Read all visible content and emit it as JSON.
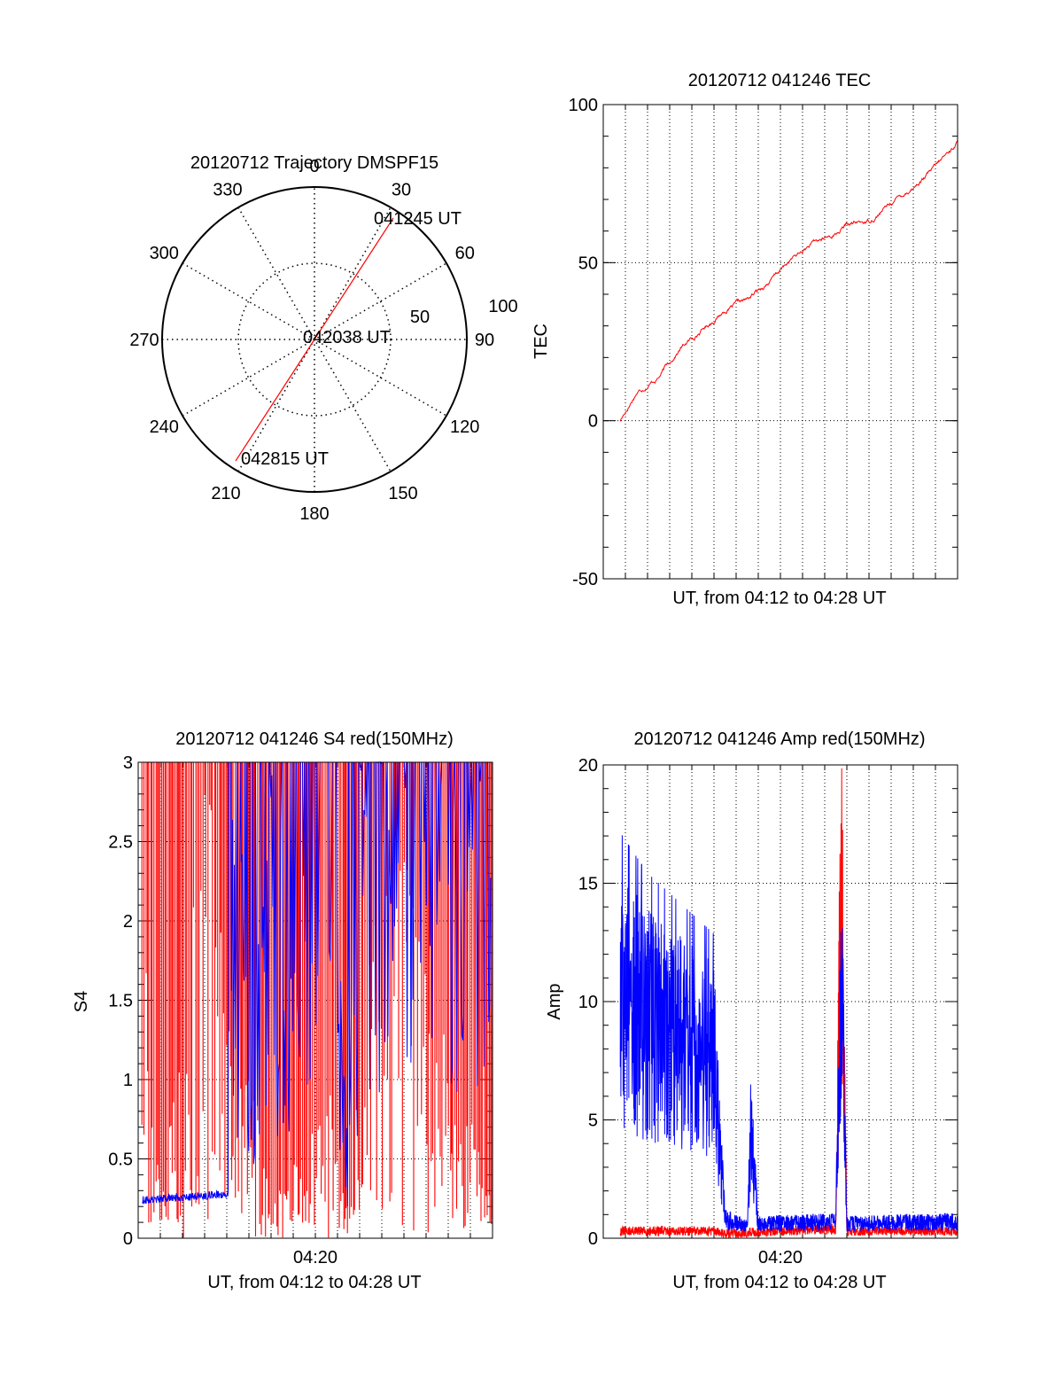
{
  "colors": {
    "red": "#ff0000",
    "blue": "#0000ff",
    "axis": "#000000",
    "grid": "#000000"
  },
  "chart_data": [
    {
      "id": "polar",
      "type": "polar-trajectory",
      "title": "20120712 Trajectory DMSPF15",
      "angle_labels": [
        "0",
        "30",
        "60",
        "90",
        "120",
        "150",
        "180",
        "210",
        "240",
        "270",
        "300",
        "330"
      ],
      "radius_labels": [
        "50",
        "100"
      ],
      "rlim": [
        0,
        100
      ],
      "trajectory": {
        "start": {
          "label": "041245 UT",
          "azimuth": 33,
          "zenith": 95
        },
        "mid": {
          "label": "042038 UT",
          "azimuth": 0,
          "zenith": 0
        },
        "end": {
          "label": "042815 UT",
          "azimuth": 213,
          "zenith": 95
        }
      }
    },
    {
      "id": "tec",
      "type": "line",
      "title": "20120712 041246 TEC",
      "xlabel": "UT, from 04:12 to 04:28 UT",
      "ylabel": "TEC",
      "xlim": [
        "04:12",
        "04:28"
      ],
      "ylim": [
        -50,
        100
      ],
      "yticks": [
        "-50",
        "0",
        "50",
        "100"
      ],
      "grid": true,
      "series": [
        {
          "color": "red",
          "x": [
            "04:12:46",
            "04:13:30",
            "04:14:30",
            "04:15:30",
            "04:16:30",
            "04:17:30",
            "04:18:30",
            "04:19:30",
            "04:20:30",
            "04:21:30",
            "04:22:30",
            "04:23:00",
            "04:24:00",
            "04:25:00",
            "04:26:00",
            "04:27:00",
            "04:28:00"
          ],
          "y": [
            0,
            9,
            14,
            23,
            29,
            35,
            38,
            44,
            51,
            56,
            59,
            62,
            63,
            69,
            74,
            80,
            88
          ]
        }
      ]
    },
    {
      "id": "s4",
      "type": "line",
      "title": "20120712 041246 S4 red(150MHz)",
      "xlabel": "UT, from 04:12 to 04:28 UT",
      "ylabel": "S4",
      "xlim": [
        "04:12",
        "04:28"
      ],
      "ylim": [
        0,
        3
      ],
      "yticks": [
        "0",
        "0.5",
        "1",
        "1.5",
        "2",
        "2.5",
        "3"
      ],
      "xticks": [
        "04:20"
      ],
      "grid": true,
      "series": [
        {
          "color": "blue",
          "x": [
            "04:12:11",
            "04:13:00",
            "04:14:00",
            "04:15:00",
            "04:16:00",
            "04:16:10",
            "04:17:10",
            "04:17:20",
            "04:18:00",
            "04:19:00",
            "04:20:00",
            "04:21:00",
            "04:21:30",
            "04:22:00",
            "04:22:20",
            "04:23:00",
            "04:25:00",
            "04:28:00"
          ],
          "y": [
            0.22,
            0.25,
            0.24,
            0.26,
            0.28,
            3.0,
            0.4,
            1.5,
            2.0,
            1.2,
            3.0,
            1.5,
            0.5,
            2.5,
            3.0,
            3.0,
            3.0,
            3.0
          ]
        },
        {
          "color": "red",
          "x": [
            "04:12:10",
            "04:13:00",
            "04:15:00",
            "04:18:00",
            "04:21:00",
            "04:21:30",
            "04:23:00",
            "04:28:00"
          ],
          "y": [
            3.0,
            0.1,
            3.0,
            0.2,
            1.0,
            0.15,
            3.0,
            0.2
          ]
        }
      ]
    },
    {
      "id": "amp",
      "type": "line",
      "title": "20120712 041246 Amp red(150MHz)",
      "xlabel": "UT, from 04:12 to 04:28 UT",
      "ylabel": "Amp",
      "xlim": [
        "04:12",
        "04:28"
      ],
      "ylim": [
        0,
        20
      ],
      "yticks": [
        "0",
        "5",
        "10",
        "15",
        "20"
      ],
      "xticks": [
        "04:20"
      ],
      "grid": true,
      "series": [
        {
          "color": "blue",
          "x": [
            "04:12:46",
            "04:14:00",
            "04:15:00",
            "04:16:00",
            "04:17:00",
            "04:17:30",
            "04:18:30",
            "04:18:40",
            "04:19:00",
            "04:22:30",
            "04:22:45",
            "04:23:00",
            "04:28:00"
          ],
          "y": [
            10.0,
            9.0,
            8.5,
            8.0,
            7.5,
            0.8,
            0.5,
            4.5,
            0.6,
            0.7,
            11.5,
            0.6,
            0.7
          ]
        },
        {
          "color": "red",
          "x": [
            "04:12:46",
            "04:17:00",
            "04:17:30",
            "04:22:30",
            "04:22:45",
            "04:23:00",
            "04:28:00"
          ],
          "y": [
            0.3,
            0.3,
            0.2,
            0.4,
            15.9,
            0.3,
            0.3
          ]
        }
      ]
    }
  ]
}
